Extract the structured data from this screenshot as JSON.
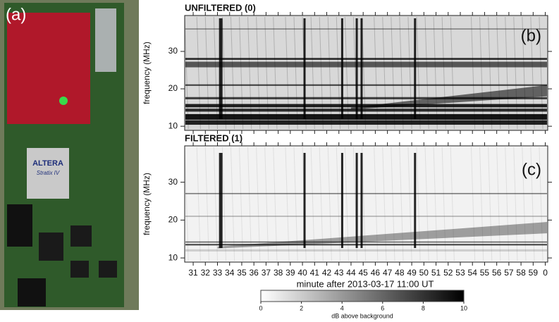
{
  "panels": {
    "a": "(a)",
    "b": "(b)",
    "c": "(c)"
  },
  "photo": {
    "chip": "ALTERA",
    "chip_series": "Stratix IV"
  },
  "spectrograms": [
    {
      "title": "UNFILTERED (0)",
      "ylabel": "frequency (MHz)",
      "ylim": [
        8.9,
        39.6
      ],
      "yticks": [
        10,
        20,
        30
      ]
    },
    {
      "title": "FILTERED (1)",
      "ylabel": "frequency (MHz)",
      "ylim": [
        8.9,
        39.6
      ],
      "yticks": [
        10,
        20,
        30
      ]
    }
  ],
  "xaxis": {
    "label": "minute after 2013-03-17  11:00 UT",
    "xlim": [
      30.3,
      60.2
    ],
    "xticks": [
      31,
      32,
      33,
      34,
      35,
      36,
      37,
      38,
      39,
      40,
      41,
      42,
      43,
      44,
      45,
      46,
      47,
      48,
      49,
      50,
      51,
      52,
      53,
      54,
      55,
      56,
      57,
      58,
      59,
      {
        "value": 60,
        "label": "0"
      }
    ]
  },
  "colorbar": {
    "label": "dB above background",
    "lim": [
      0,
      10
    ],
    "ticks": [
      0,
      2,
      4,
      6,
      8,
      10
    ]
  }
}
